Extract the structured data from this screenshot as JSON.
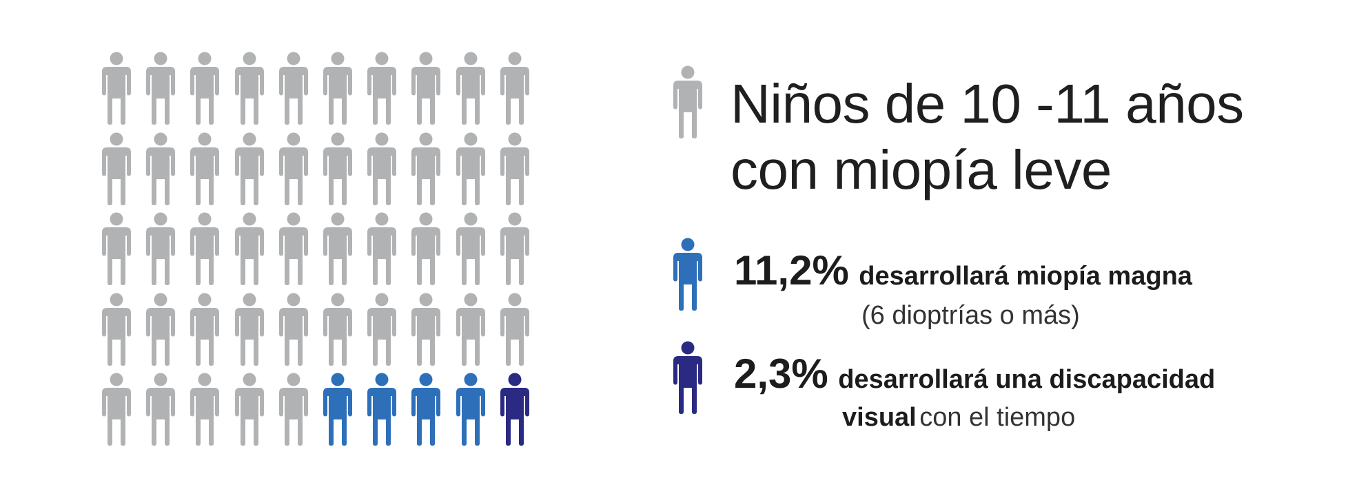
{
  "colors": {
    "gray": "#b1b2b4",
    "blue": "#2e6fba",
    "navy": "#2b2a82"
  },
  "pictogram": {
    "icon": "person-icon",
    "rows": 5,
    "cols": 10,
    "total": 50,
    "blue_count": 4,
    "navy_count": 1
  },
  "legend": {
    "title_line1": "Niños de 10 -11 años",
    "title_line2": "con miopía leve",
    "stat1": {
      "percent": "11,2%",
      "text": "desarrollará miopía magna",
      "subtext": "(6 dioptrías o más)"
    },
    "stat2": {
      "percent": "2,3%",
      "text": "desarrollará una discapacidad",
      "text_bold2": "visual",
      "text_light": "con el tiempo"
    }
  }
}
